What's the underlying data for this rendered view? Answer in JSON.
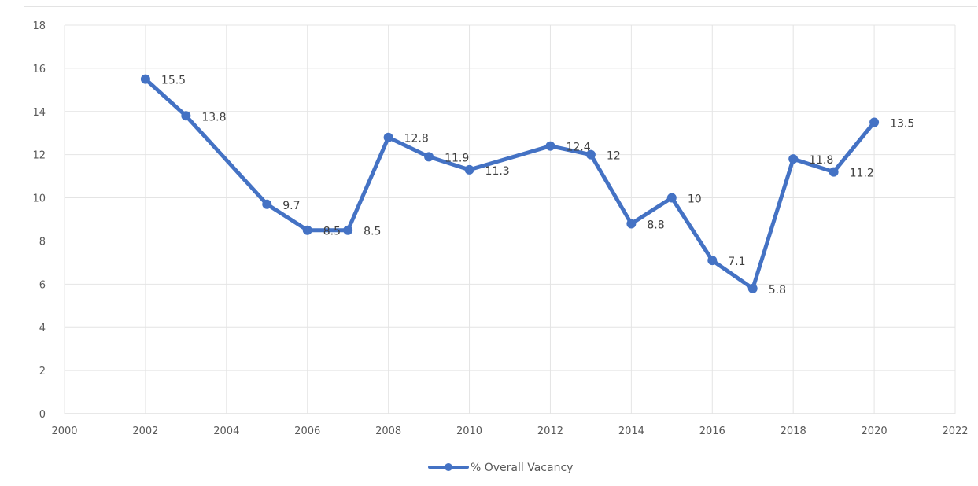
{
  "chart_data": {
    "type": "scatter",
    "title": "",
    "xlabel": "",
    "ylabel": "",
    "xlim": [
      2000,
      2022
    ],
    "ylim": [
      0,
      18
    ],
    "x_ticks": [
      "2000",
      "2002",
      "2004",
      "2006",
      "2008",
      "2010",
      "2012",
      "2014",
      "2016",
      "2018",
      "2020",
      "2022"
    ],
    "y_ticks": [
      "0",
      "2",
      "4",
      "6",
      "8",
      "10",
      "12",
      "14",
      "16",
      "18"
    ],
    "grid": true,
    "legend": "bottom",
    "series": [
      {
        "name": "% Overall Vacancy",
        "color": "#4472c4",
        "mode": "lines+markers",
        "x": [
          2002,
          2003,
          2005,
          2006,
          2007,
          2008,
          2009,
          2010,
          2012,
          2013,
          2014,
          2015,
          2016,
          2017,
          2018,
          2019,
          2020
        ],
        "y": [
          15.5,
          13.8,
          9.7,
          8.5,
          8.5,
          12.8,
          11.9,
          11.3,
          12.4,
          12,
          8.8,
          10,
          7.1,
          5.8,
          11.8,
          11.2,
          13.5
        ],
        "labels": [
          "15.5",
          "13.8",
          "9.7",
          "8.5",
          "8.5",
          "12.8",
          "11.9",
          "11.3",
          "12.4",
          "12",
          "8.8",
          "10",
          "7.1",
          "5.8",
          "11.8",
          "11.2",
          "13.5"
        ]
      }
    ]
  }
}
